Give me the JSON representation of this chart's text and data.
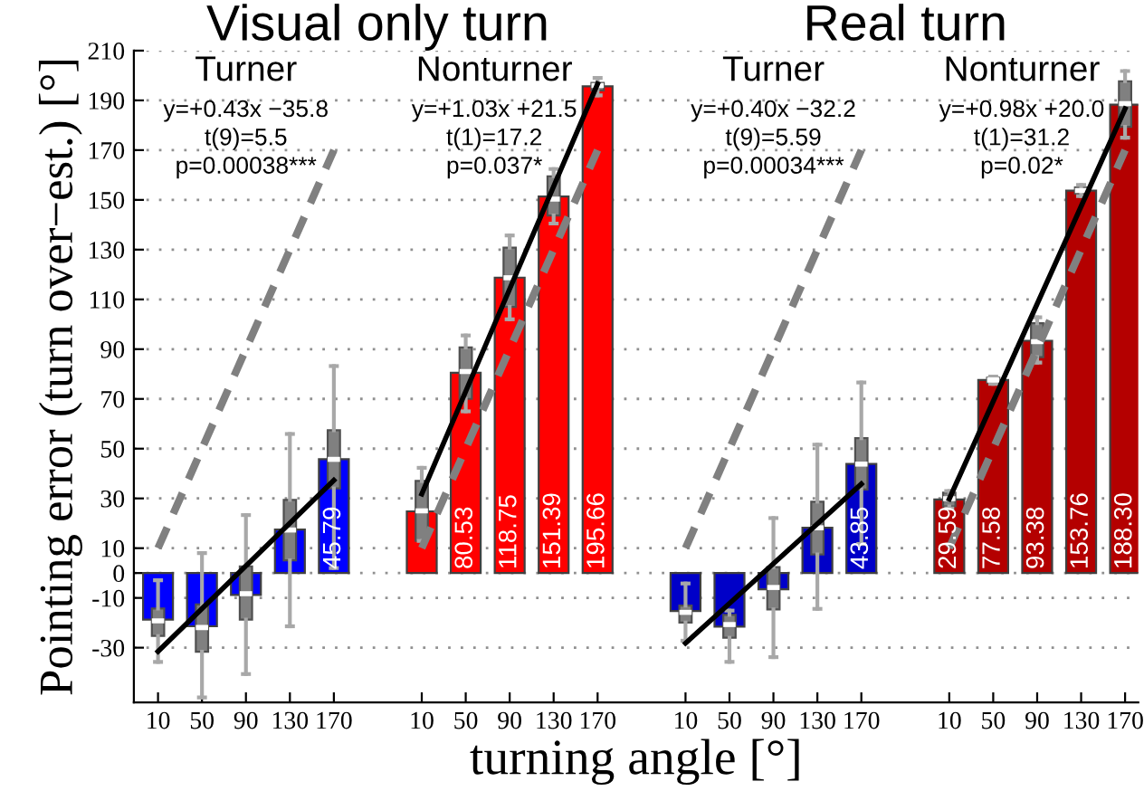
{
  "chart_data": {
    "type": "bar",
    "xlabel": "turning angle [°]",
    "ylabel": "Pointing error (turn over−est.) [°]",
    "categories": [
      "10",
      "50",
      "90",
      "130",
      "170",
      null,
      "10",
      "50",
      "90",
      "130",
      "170",
      null,
      "10",
      "50",
      "90",
      "130",
      "170",
      null,
      "10",
      "50",
      "90",
      "130",
      "170"
    ],
    "ylim": [
      -52,
      210
    ],
    "yticks": [
      -30,
      -10,
      0,
      10,
      30,
      50,
      70,
      90,
      110,
      130,
      150,
      170,
      190,
      210
    ],
    "grid": "y",
    "annotations": [
      "Visual only turn",
      "Real turn",
      "Turner\ny=+0.43x −35.8\nt(9)=5.5\np=0.00038***",
      "Nonturner\ny=+1.03x +21.5\nt(1)=17.2\np=0.037*",
      "Turner\ny=+0.40x −32.2\nt(9)=5.59\np=0.00034***",
      "Nonturner\ny=+0.98x +20.0\nt(1)=31.2\np=0.02*"
    ],
    "series": [
      {
        "values": [
          -18.7,
          -21.4,
          -8.8,
          17.5,
          45.79,
          null,
          24.8,
          80.53,
          118.75,
          151.39,
          195.66,
          null,
          -15.3,
          -21.5,
          -6.5,
          18.2,
          43.85,
          null,
          29.59,
          77.58,
          93.38,
          153.76,
          188.3
        ],
        "colors": [
          "#0000ff",
          "#0000ff",
          "#0000ff",
          "#0000ff",
          "#0000ff",
          null,
          "#ff0000",
          "#ff0000",
          "#ff0000",
          "#ff0000",
          "#ff0000",
          null,
          "#0000c8",
          "#0000c8",
          "#0000c8",
          "#0000c8",
          "#0000c8",
          null,
          "#b40000",
          "#b40000",
          "#b40000",
          "#b40000",
          "#b40000"
        ],
        "value_labels": [
          null,
          null,
          null,
          null,
          "45.79",
          null,
          null,
          "80.53",
          "118.75",
          "151.39",
          "195.66",
          null,
          null,
          null,
          null,
          null,
          "43.85",
          null,
          "29.59",
          "77.58",
          "93.38",
          "153.76",
          "188.30"
        ]
      },
      {
        "type": "box",
        "color": "#808080",
        "boxes": [
          {
            "low": -35.7,
            "q1": -25.3,
            "median": -19.2,
            "q3": -14.3,
            "high": -2.9
          },
          {
            "low": -50,
            "q1": -31.6,
            "median": -21.9,
            "q3": -12.6,
            "high": 8
          },
          {
            "low": -40.6,
            "q1": -18.7,
            "median": -8.3,
            "q3": 2.7,
            "high": 23.3
          },
          {
            "low": -21.4,
            "q1": 5.1,
            "median": 17.3,
            "q3": 29.4,
            "high": 55.9
          },
          {
            "low": 2,
            "q1": 34,
            "median": 45.7,
            "q3": 57.4,
            "high": 83.2
          },
          null,
          {
            "low": 12.9,
            "q1": 12.9,
            "median": 25,
            "q3": 37,
            "high": 42.3
          },
          {
            "low": 65,
            "q1": 70,
            "median": 81,
            "q3": 90.7,
            "high": 95.5
          },
          {
            "low": 102,
            "q1": 107,
            "median": 118.7,
            "q3": 130.8,
            "high": 135.7
          },
          {
            "low": 140.5,
            "q1": 143.7,
            "median": 150.3,
            "q3": 159.5,
            "high": 162.4
          },
          {
            "low": 192,
            "q1": 194,
            "median": 196,
            "q3": 197,
            "high": 199
          },
          null,
          {
            "low": -27.2,
            "q1": -19.9,
            "median": -15.8,
            "q3": -13.1,
            "high": -4.2
          },
          {
            "low": -35.7,
            "q1": -26,
            "median": -20.7,
            "q3": -16.8,
            "high": -15.1
          },
          {
            "low": -33.8,
            "q1": -14.6,
            "median": -5.8,
            "q3": 2.4,
            "high": 22.1
          },
          {
            "low": -14.4,
            "q1": 7.5,
            "median": 18.2,
            "q3": 28.7,
            "high": 51.6
          },
          {
            "low": 11.7,
            "q1": 33.6,
            "median": 43.8,
            "q3": 54.2,
            "high": 76.6
          },
          null,
          {
            "low": 26,
            "q1": 26.8,
            "median": 29.9,
            "q3": 32.3,
            "high": 33
          },
          {
            "low": 76,
            "q1": 76.5,
            "median": 77.6,
            "q3": 78.5,
            "high": 79
          },
          {
            "low": 84.6,
            "q1": 86.8,
            "median": 93,
            "q3": 100.4,
            "high": 102.8
          },
          {
            "low": 151.5,
            "q1": 152.5,
            "median": 153.8,
            "q3": 155,
            "high": 156
          },
          {
            "low": 175,
            "q1": 179.4,
            "median": 188.7,
            "q3": 197.7,
            "high": 201.8
          }
        ]
      },
      {
        "type": "line",
        "color": "#000000",
        "line_style": "solid",
        "values": [
          -31.5,
          -14.3,
          2.9,
          20.1,
          37.3,
          null,
          31.8,
          73.0,
          114.2,
          155.4,
          196.6,
          null,
          -28.2,
          -12.2,
          3.8,
          19.8,
          35.8,
          null,
          29.8,
          69.0,
          108.2,
          147.4,
          186.6
        ]
      },
      {
        "type": "line",
        "color": "#808080",
        "line_style": "dashed",
        "values": [
          10,
          50,
          90,
          130,
          170,
          null,
          10,
          50,
          90,
          130,
          170,
          null,
          10,
          50,
          90,
          130,
          170,
          null,
          10,
          50,
          90,
          130,
          170
        ]
      }
    ]
  }
}
